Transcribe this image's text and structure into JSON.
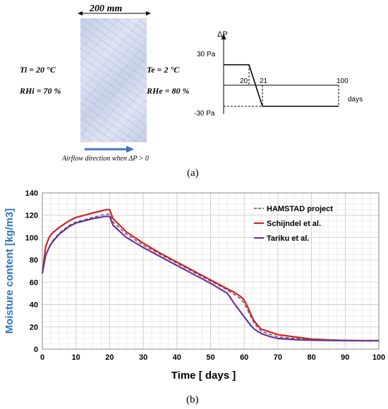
{
  "panel_a": {
    "thickness_label": "200 mm",
    "ti_label": "Ti = 20 °C",
    "rhi_label": "RHi = 70 %",
    "te_label": "Te = 2  °C",
    "rhe_label": "RHe = 80 %",
    "airflow_label": "Airflow direction when  ΔP > 0",
    "caption": "(a)",
    "pressure_chart": {
      "ylabel": "ΔP",
      "y_top_label": "30 Pa",
      "y_bottom_label": "-30 Pa",
      "tick_20": "20",
      "tick_21": "21",
      "tick_100": "100",
      "xlabel": "days"
    }
  },
  "panel_b": {
    "caption": "(b)"
  },
  "colors": {
    "hamstad": "#555566",
    "schijndel": "#d42020",
    "tariku": "#7030a0",
    "axis_label": "#2e75b6",
    "arrow": "#4472c4"
  },
  "chart_data": [
    {
      "type": "line",
      "title": "",
      "xlabel": "days",
      "ylabel": "ΔP",
      "series": [
        {
          "x": [
            0,
            20,
            21,
            100
          ],
          "y": [
            30,
            30,
            -30,
            -30
          ]
        }
      ],
      "xticks": [
        "20",
        "21",
        "100"
      ],
      "yticks": [
        "30 Pa",
        "-30 Pa"
      ]
    },
    {
      "type": "line",
      "title": "",
      "xlabel": "Time [ days ]",
      "ylabel": "Moisture content [kg/m3]",
      "xlim": [
        0,
        100
      ],
      "ylim": [
        0,
        140
      ],
      "xticks": [
        0,
        10,
        20,
        30,
        40,
        50,
        60,
        70,
        80,
        90,
        100
      ],
      "yticks": [
        0,
        20,
        40,
        60,
        80,
        100,
        120,
        140
      ],
      "grid": true,
      "legend_position": "top-right",
      "series": [
        {
          "name": "HAMSTAD project",
          "style": "dashed",
          "color": "#555566",
          "x": [
            0,
            1,
            2,
            3,
            5,
            8,
            10,
            15,
            19,
            20,
            21,
            25,
            30,
            35,
            40,
            45,
            50,
            55,
            57,
            59,
            60,
            61,
            62,
            63,
            65,
            68,
            70,
            75,
            80,
            85,
            90,
            95,
            100
          ],
          "y": [
            68,
            84,
            92,
            97,
            104,
            111,
            114,
            118,
            121,
            121,
            114,
            103,
            93,
            85,
            77,
            69,
            61,
            53,
            49,
            45,
            41,
            35,
            29,
            23,
            16,
            13,
            11,
            9.5,
            8.5,
            8,
            7.8,
            7.6,
            7.5
          ]
        },
        {
          "name": "Schijndel et al.",
          "style": "solid",
          "color": "#d42020",
          "x": [
            0,
            1,
            2,
            3,
            5,
            8,
            10,
            15,
            19,
            20,
            21,
            25,
            30,
            35,
            40,
            45,
            50,
            55,
            57,
            59,
            60,
            61,
            62,
            63,
            65,
            68,
            70,
            75,
            80,
            85,
            90,
            95,
            100
          ],
          "y": [
            68,
            92,
            100,
            104,
            109,
            115,
            118,
            122,
            125,
            125,
            117,
            105,
            95,
            86,
            78,
            70,
            62,
            54,
            51,
            47,
            44,
            38,
            31,
            25,
            18,
            15,
            13,
            11,
            9,
            8.3,
            7.8,
            7.6,
            7.6
          ]
        },
        {
          "name": "Tariku et al.",
          "style": "solid",
          "color": "#7030a0",
          "x": [
            0,
            1,
            2,
            3,
            5,
            8,
            10,
            15,
            19,
            20,
            21,
            25,
            30,
            35,
            40,
            45,
            50,
            55,
            57,
            59,
            60,
            61,
            62,
            63,
            65,
            68,
            70,
            75,
            80,
            85,
            90,
            95,
            100
          ],
          "y": [
            68,
            84,
            91,
            96,
            103,
            110,
            113,
            117,
            119,
            119,
            111,
            100,
            91,
            83,
            75,
            67,
            59,
            50,
            41,
            33,
            29,
            25,
            21,
            18,
            14,
            11,
            9.5,
            8.5,
            8,
            7.8,
            7.6,
            7.5,
            7.5
          ]
        }
      ]
    }
  ]
}
